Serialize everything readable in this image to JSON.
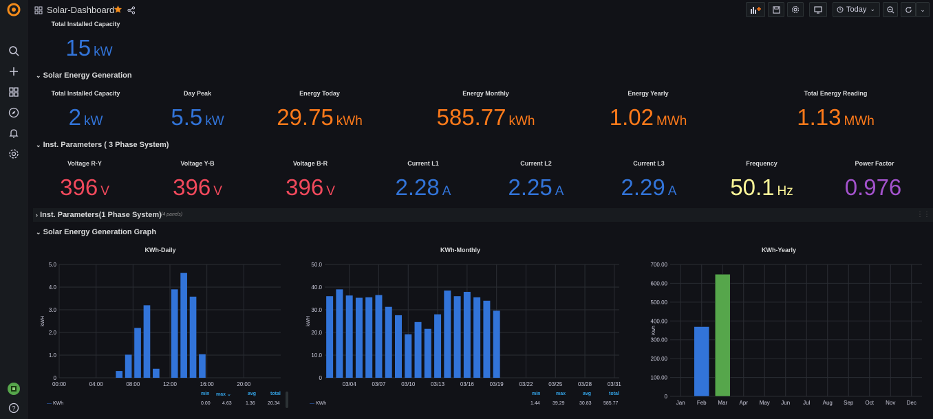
{
  "header": {
    "title": "Solar-Dashboard",
    "time_range": "Today"
  },
  "colors": {
    "blue": "#3274d9",
    "orange": "#ff7a1a",
    "red": "#f2495c",
    "yellow": "#fff899",
    "purple": "#a352cc",
    "green": "#56a64b"
  },
  "top_stat": {
    "title": "Total Installed Capacity",
    "value": "15",
    "unit": "kW"
  },
  "rows": {
    "solar_gen": "Solar Energy Generation",
    "inst3": "Inst. Parameters ( 3 Phase System)",
    "inst1": "Inst. Parameters(1 Phase System)",
    "inst1_count": "(4 panels)",
    "graph": "Solar Energy Generation Graph"
  },
  "solar_stats": [
    {
      "title": "Total Installed Capacity",
      "value": "2",
      "unit": "kW"
    },
    {
      "title": "Day Peak",
      "value": "5.5",
      "unit": "kW"
    },
    {
      "title": "Energy Today",
      "value": "29.75",
      "unit": "kWh"
    },
    {
      "title": "Energy Monthly",
      "value": "585.77",
      "unit": "kWh"
    },
    {
      "title": "Energy Yearly",
      "value": "1.02",
      "unit": "MWh"
    },
    {
      "title": "Total Energy Reading",
      "value": "1.13",
      "unit": "MWh"
    }
  ],
  "inst_stats": [
    {
      "title": "Voltage R-Y",
      "value": "396",
      "unit": "V"
    },
    {
      "title": "Voltage Y-B",
      "value": "396",
      "unit": "V"
    },
    {
      "title": "Voltage B-R",
      "value": "396",
      "unit": "V"
    },
    {
      "title": "Current L1",
      "value": "2.28",
      "unit": "A"
    },
    {
      "title": "Current L2",
      "value": "2.25",
      "unit": "A"
    },
    {
      "title": "Current L3",
      "value": "2.29",
      "unit": "A"
    },
    {
      "title": "Frequency",
      "value": "50.1",
      "unit": "Hz"
    },
    {
      "title": "Power Factor",
      "value": "0.976",
      "unit": ""
    }
  ],
  "legend_headers": {
    "min": "min",
    "max": "max",
    "avg": "avg",
    "total": "total"
  },
  "chart_data": [
    {
      "type": "bar",
      "title": "KWh-Daily",
      "ylabel": "kWH",
      "ylim": [
        0,
        5
      ],
      "yticks": [
        "0",
        "1.0",
        "2.0",
        "3.0",
        "4.0",
        "5.0"
      ],
      "xticks": [
        "00:00",
        "04:00",
        "08:00",
        "12:00",
        "16:00",
        "20:00"
      ],
      "x_hours": [
        6.5,
        7.5,
        8.5,
        9.5,
        10.5,
        12.5,
        13.5,
        14.5,
        15.5
      ],
      "values": [
        0.3,
        1.02,
        2.2,
        3.2,
        0.4,
        3.9,
        4.63,
        3.58,
        1.04
      ],
      "series": [
        {
          "name": "KWh"
        }
      ],
      "legend": {
        "min": "0.00",
        "max": "4.63",
        "avg": "1.36",
        "total": "20.34"
      }
    },
    {
      "type": "bar",
      "title": "KWh-Monthly",
      "ylabel": "kWH",
      "ylim": [
        0,
        50
      ],
      "yticks": [
        "0",
        "10.0",
        "20.0",
        "30.0",
        "40.0",
        "50.0"
      ],
      "xticks": [
        "03/04",
        "03/07",
        "03/10",
        "03/13",
        "03/16",
        "03/19",
        "03/22",
        "03/25",
        "03/28",
        "03/31"
      ],
      "days": [
        2,
        3,
        4,
        5,
        6,
        7,
        8,
        9,
        10,
        11,
        12,
        13,
        14,
        15,
        16,
        17,
        18,
        19
      ],
      "values": [
        36,
        39,
        36.3,
        35.3,
        35.5,
        36.5,
        31.3,
        27.6,
        19.2,
        24.6,
        21.6,
        28,
        38.5,
        36,
        37.9,
        35.5,
        34,
        29.6
      ],
      "series": [
        {
          "name": "KWh"
        }
      ],
      "legend": {
        "min": "1.44",
        "max": "39.29",
        "avg": "30.83",
        "total": "585.77"
      }
    },
    {
      "type": "bar",
      "title": "KWh-Yearly",
      "ylabel": "Kwh",
      "ylim": [
        0,
        700
      ],
      "yticks": [
        "0",
        "100.00",
        "200.00",
        "300.00",
        "400.00",
        "500.00",
        "600.00",
        "700.00"
      ],
      "categories": [
        "Jan",
        "Feb",
        "Mar",
        "Apr",
        "May",
        "Jun",
        "Jul",
        "Aug",
        "Sep",
        "Oct",
        "Nov",
        "Dec"
      ],
      "values": [
        0,
        370,
        648,
        0,
        0,
        0,
        0,
        0,
        0,
        0,
        0,
        0
      ]
    }
  ]
}
